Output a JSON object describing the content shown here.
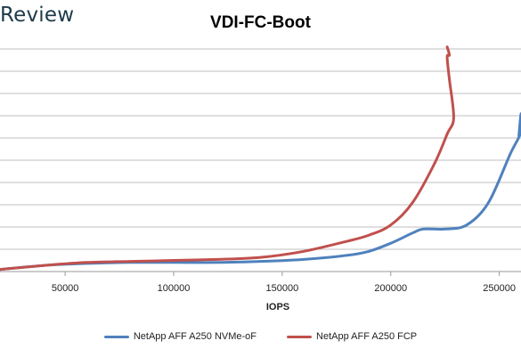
{
  "brand": {
    "text": "Review"
  },
  "chart_data": {
    "type": "line",
    "title": "VDI-FC-Boot",
    "xlabel": "IOPS",
    "ylabel": "",
    "xlim": [
      20000,
      260000
    ],
    "ylim": [
      0,
      11
    ],
    "x_ticks": [
      {
        "value": 50000,
        "label": "50000"
      },
      {
        "value": 100000,
        "label": "100000"
      },
      {
        "value": 150000,
        "label": "150000"
      },
      {
        "value": 200000,
        "label": "200000"
      },
      {
        "value": 250000,
        "label": "250000"
      }
    ],
    "grid": "horizontal",
    "legend_position": "bottom",
    "series": [
      {
        "name": "NetApp AFF A250 NVMe-oF",
        "color": "#4f81bd",
        "points": [
          [
            20000,
            0.1
          ],
          [
            40000,
            0.3
          ],
          [
            60000,
            0.4
          ],
          [
            80000,
            0.45
          ],
          [
            100000,
            0.45
          ],
          [
            120000,
            0.45
          ],
          [
            140000,
            0.5
          ],
          [
            160000,
            0.6
          ],
          [
            180000,
            0.8
          ],
          [
            190000,
            1.0
          ],
          [
            200000,
            1.4
          ],
          [
            210000,
            1.9
          ],
          [
            215000,
            2.1
          ],
          [
            225000,
            2.1
          ],
          [
            235000,
            2.3
          ],
          [
            245000,
            3.4
          ],
          [
            255000,
            5.8
          ],
          [
            260000,
            6.9
          ],
          [
            260000,
            7.8
          ],
          [
            259000,
            6.7
          ]
        ]
      },
      {
        "name": "NetApp AFF A250 FCP",
        "color": "#c0504d",
        "points": [
          [
            20000,
            0.1
          ],
          [
            40000,
            0.3
          ],
          [
            60000,
            0.45
          ],
          [
            80000,
            0.5
          ],
          [
            100000,
            0.55
          ],
          [
            120000,
            0.6
          ],
          [
            140000,
            0.7
          ],
          [
            160000,
            1.0
          ],
          [
            180000,
            1.5
          ],
          [
            190000,
            1.8
          ],
          [
            200000,
            2.3
          ],
          [
            210000,
            3.4
          ],
          [
            220000,
            5.3
          ],
          [
            226000,
            6.8
          ],
          [
            229000,
            7.6
          ],
          [
            227000,
            9.5
          ],
          [
            226000,
            10.6
          ],
          [
            227000,
            10.7
          ],
          [
            226000,
            11.1
          ]
        ]
      }
    ]
  }
}
